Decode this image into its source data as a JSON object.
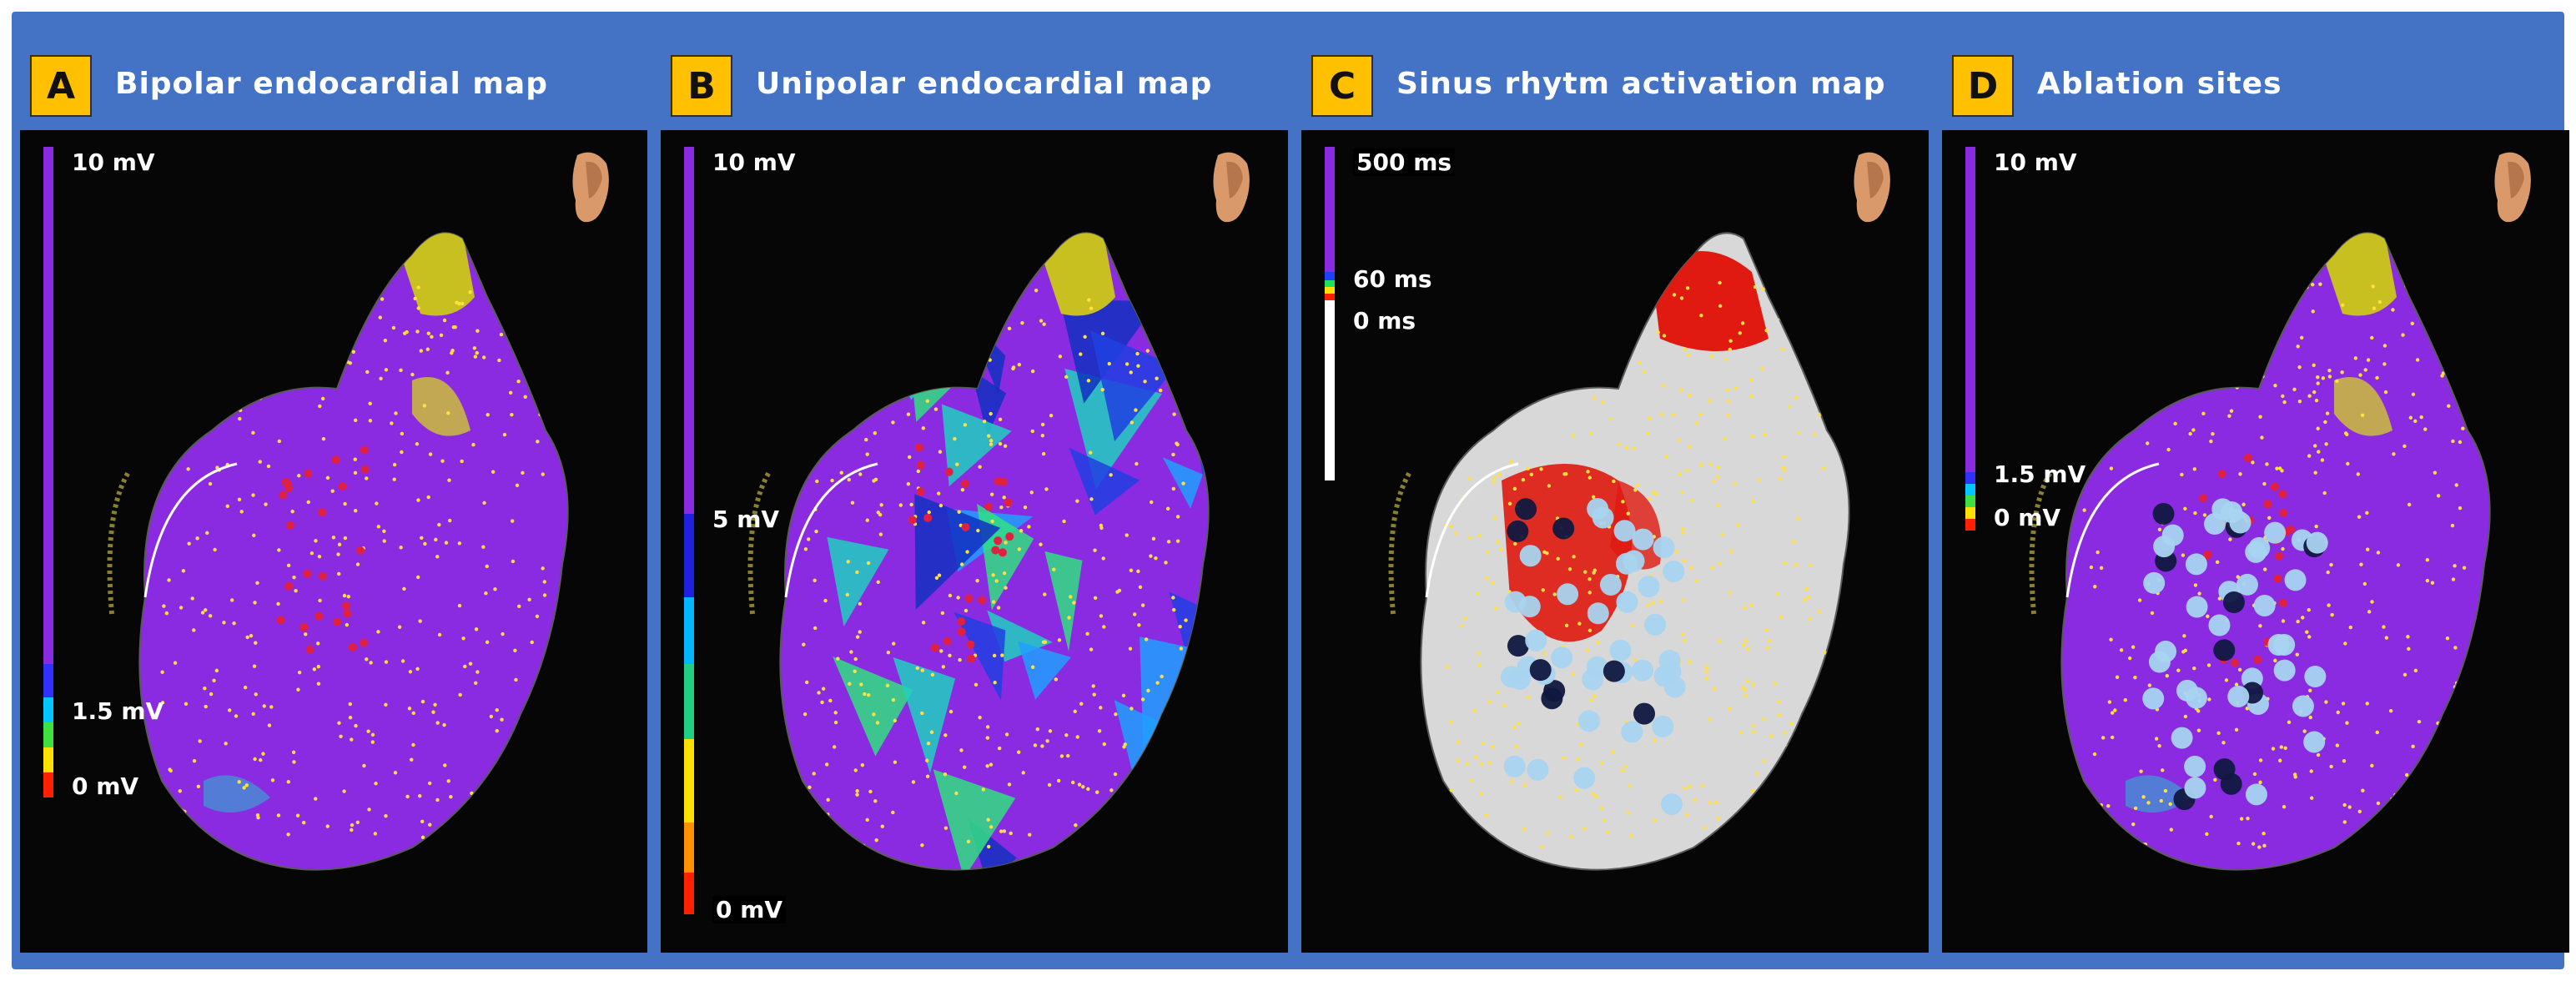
{
  "panels": [
    {
      "letter": "A",
      "title": "Bipolar endocardial map",
      "scale": {
        "top": "10 mV",
        "mid": "1.5 mV",
        "bottom": "0 mV"
      },
      "map_style": "bipolar"
    },
    {
      "letter": "B",
      "title": "Unipolar endocardial map",
      "scale": {
        "top": "10 mV",
        "mid": "5 mV",
        "bottom": "0 mV"
      },
      "map_style": "unipolar"
    },
    {
      "letter": "C",
      "title": "Sinus rhytm activation map",
      "scale": {
        "top": "500 ms",
        "mid": "60 ms",
        "bottom": "0 ms"
      },
      "map_style": "activation"
    },
    {
      "letter": "D",
      "title": "Ablation sites",
      "scale": {
        "top": "10 mV",
        "mid": "1.5 mV",
        "bottom": "0 mV"
      },
      "map_style": "ablation"
    }
  ],
  "colors": {
    "frame_blue": "#4472c4",
    "badge_yellow": "#ffc000",
    "scar_purple": "#8a2be2",
    "healthy_white": "#d8d8d8",
    "activation_red": "#e01a10",
    "point_yellow": "#ffe040",
    "ablation_lightblue": "#a8d4f0"
  },
  "icons": {
    "orientation": "torso-orientation-icon"
  }
}
